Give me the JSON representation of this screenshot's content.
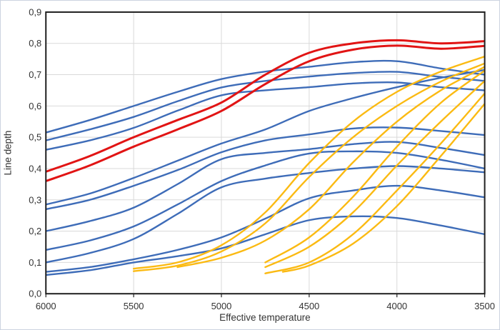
{
  "chart_data": {
    "type": "line",
    "title": "",
    "xlabel": "Effective temperature",
    "ylabel": "Line depth",
    "xlim": [
      6000,
      3500
    ],
    "ylim": [
      0.0,
      0.9
    ],
    "x_axis_reversed": true,
    "grid": true,
    "legend": "none",
    "x_tick_labels": [
      "6000",
      "5500",
      "5000",
      "4500",
      "4000",
      "3500"
    ],
    "x_tick_values": [
      6000,
      5500,
      5000,
      4500,
      4000,
      3500
    ],
    "y_tick_labels": [
      "0,0",
      "0,1",
      "0,2",
      "0,3",
      "0,4",
      "0,5",
      "0,6",
      "0,7",
      "0,8",
      "0,9"
    ],
    "y_tick_values": [
      0.0,
      0.1,
      0.2,
      0.3,
      0.4,
      0.5,
      0.6,
      0.7,
      0.8,
      0.9
    ],
    "series": [
      {
        "name": "blue-1",
        "color": "blue",
        "x": [
          6000,
          5750,
          5500,
          5250,
          5000,
          4750,
          4500,
          4250,
          4000,
          3750,
          3500
        ],
        "y": [
          0.515,
          0.555,
          0.6,
          0.645,
          0.686,
          0.71,
          0.725,
          0.74,
          0.743,
          0.72,
          0.7
        ]
      },
      {
        "name": "blue-2",
        "color": "blue",
        "x": [
          6000,
          5750,
          5500,
          5250,
          5000,
          4750,
          4500,
          4250,
          4000,
          3750,
          3500
        ],
        "y": [
          0.49,
          0.525,
          0.565,
          0.615,
          0.659,
          0.68,
          0.694,
          0.705,
          0.709,
          0.693,
          0.68
        ]
      },
      {
        "name": "blue-3",
        "color": "blue",
        "x": [
          6000,
          5750,
          5500,
          5250,
          5000,
          4750,
          4500,
          4250,
          4000,
          3750,
          3500
        ],
        "y": [
          0.46,
          0.49,
          0.53,
          0.585,
          0.634,
          0.65,
          0.66,
          0.672,
          0.675,
          0.66,
          0.65
        ]
      },
      {
        "name": "blue-4",
        "color": "blue",
        "x": [
          6000,
          5750,
          5500,
          5250,
          5000,
          4750,
          4500,
          4250,
          4000,
          3750,
          3500
        ],
        "y": [
          0.285,
          0.32,
          0.37,
          0.425,
          0.48,
          0.525,
          0.584,
          0.625,
          0.66,
          0.69,
          0.715
        ]
      },
      {
        "name": "blue-5",
        "color": "blue",
        "x": [
          6000,
          5750,
          5500,
          5250,
          5000,
          4750,
          4500,
          4250,
          4000,
          3750,
          3500
        ],
        "y": [
          0.27,
          0.3,
          0.345,
          0.395,
          0.452,
          0.49,
          0.509,
          0.528,
          0.531,
          0.52,
          0.507
        ]
      },
      {
        "name": "blue-6",
        "color": "blue",
        "x": [
          6000,
          5750,
          5500,
          5250,
          5000,
          4750,
          4500,
          4250,
          4000,
          3750,
          3500
        ],
        "y": [
          0.2,
          0.232,
          0.275,
          0.35,
          0.43,
          0.45,
          0.462,
          0.478,
          0.485,
          0.466,
          0.443
        ]
      },
      {
        "name": "blue-7",
        "color": "blue",
        "x": [
          6000,
          5750,
          5500,
          5250,
          5000,
          4750,
          4500,
          4250,
          4000,
          3750,
          3500
        ],
        "y": [
          0.14,
          0.17,
          0.215,
          0.285,
          0.36,
          0.41,
          0.448,
          0.455,
          0.45,
          0.428,
          0.4
        ]
      },
      {
        "name": "blue-8",
        "color": "blue",
        "x": [
          6000,
          5750,
          5500,
          5250,
          5000,
          4750,
          4500,
          4250,
          4000,
          3750,
          3500
        ],
        "y": [
          0.1,
          0.13,
          0.175,
          0.255,
          0.34,
          0.368,
          0.386,
          0.4,
          0.408,
          0.4,
          0.388
        ]
      },
      {
        "name": "blue-9",
        "color": "blue",
        "x": [
          6000,
          5750,
          5500,
          5250,
          5000,
          4750,
          4500,
          4250,
          4000,
          3750,
          3500
        ],
        "y": [
          0.07,
          0.085,
          0.11,
          0.14,
          0.18,
          0.24,
          0.305,
          0.33,
          0.345,
          0.33,
          0.308
        ]
      },
      {
        "name": "blue-10",
        "color": "blue",
        "x": [
          6000,
          5750,
          5500,
          5250,
          5000,
          4750,
          4500,
          4250,
          4000,
          3750,
          3500
        ],
        "y": [
          0.06,
          0.075,
          0.1,
          0.12,
          0.145,
          0.19,
          0.235,
          0.247,
          0.242,
          0.218,
          0.19
        ]
      },
      {
        "name": "red-1",
        "color": "red",
        "x": [
          6000,
          5750,
          5500,
          5250,
          5000,
          4750,
          4500,
          4250,
          4000,
          3750,
          3500
        ],
        "y": [
          0.39,
          0.44,
          0.5,
          0.555,
          0.611,
          0.7,
          0.77,
          0.8,
          0.81,
          0.8,
          0.807
        ]
      },
      {
        "name": "red-2",
        "color": "red",
        "x": [
          6000,
          5750,
          5500,
          5250,
          5000,
          4750,
          4500,
          4250,
          4000,
          3750,
          3500
        ],
        "y": [
          0.36,
          0.41,
          0.47,
          0.525,
          0.584,
          0.67,
          0.743,
          0.78,
          0.793,
          0.783,
          0.792
        ]
      },
      {
        "name": "yellow-1",
        "color": "yellow",
        "x": [
          5500,
          5250,
          5000,
          4750,
          4500,
          4250,
          4000,
          3750,
          3500
        ],
        "y": [
          0.08,
          0.1,
          0.155,
          0.26,
          0.418,
          0.55,
          0.645,
          0.71,
          0.758
        ]
      },
      {
        "name": "yellow-2",
        "color": "yellow",
        "x": [
          5500,
          5250,
          5000,
          4750,
          4500,
          4250,
          4000,
          3750,
          3500
        ],
        "y": [
          0.072,
          0.09,
          0.135,
          0.225,
          0.373,
          0.5,
          0.6,
          0.678,
          0.736
        ]
      },
      {
        "name": "yellow-3",
        "color": "yellow",
        "x": [
          5250,
          5000,
          4750,
          4500,
          4250,
          4000,
          3750,
          3500
        ],
        "y": [
          0.085,
          0.115,
          0.17,
          0.27,
          0.42,
          0.55,
          0.65,
          0.725
        ]
      },
      {
        "name": "yellow-4",
        "color": "yellow",
        "x": [
          4750,
          4500,
          4250,
          4000,
          3750,
          3500
        ],
        "y": [
          0.1,
          0.18,
          0.31,
          0.47,
          0.61,
          0.713
        ]
      },
      {
        "name": "yellow-5",
        "color": "yellow",
        "x": [
          4750,
          4500,
          4250,
          4000,
          3750,
          3500
        ],
        "y": [
          0.085,
          0.15,
          0.26,
          0.41,
          0.55,
          0.68
        ]
      },
      {
        "name": "yellow-6",
        "color": "yellow",
        "x": [
          4750,
          4500,
          4250,
          4000,
          3750,
          3500
        ],
        "y": [
          0.065,
          0.1,
          0.19,
          0.33,
          0.48,
          0.64
        ]
      },
      {
        "name": "yellow-7",
        "color": "yellow",
        "x": [
          4650,
          4500,
          4250,
          4000,
          3750,
          3500
        ],
        "y": [
          0.07,
          0.09,
          0.16,
          0.28,
          0.44,
          0.607
        ]
      }
    ]
  },
  "colors": {
    "blue": "#3e6cb8",
    "red": "#e11414",
    "yellow": "#fbba12",
    "grid": "#d9d9d9",
    "frame": "#1f1f1f",
    "tick": "#1f1f1f",
    "text": "#333333",
    "page_border": "#ccd4e0"
  }
}
